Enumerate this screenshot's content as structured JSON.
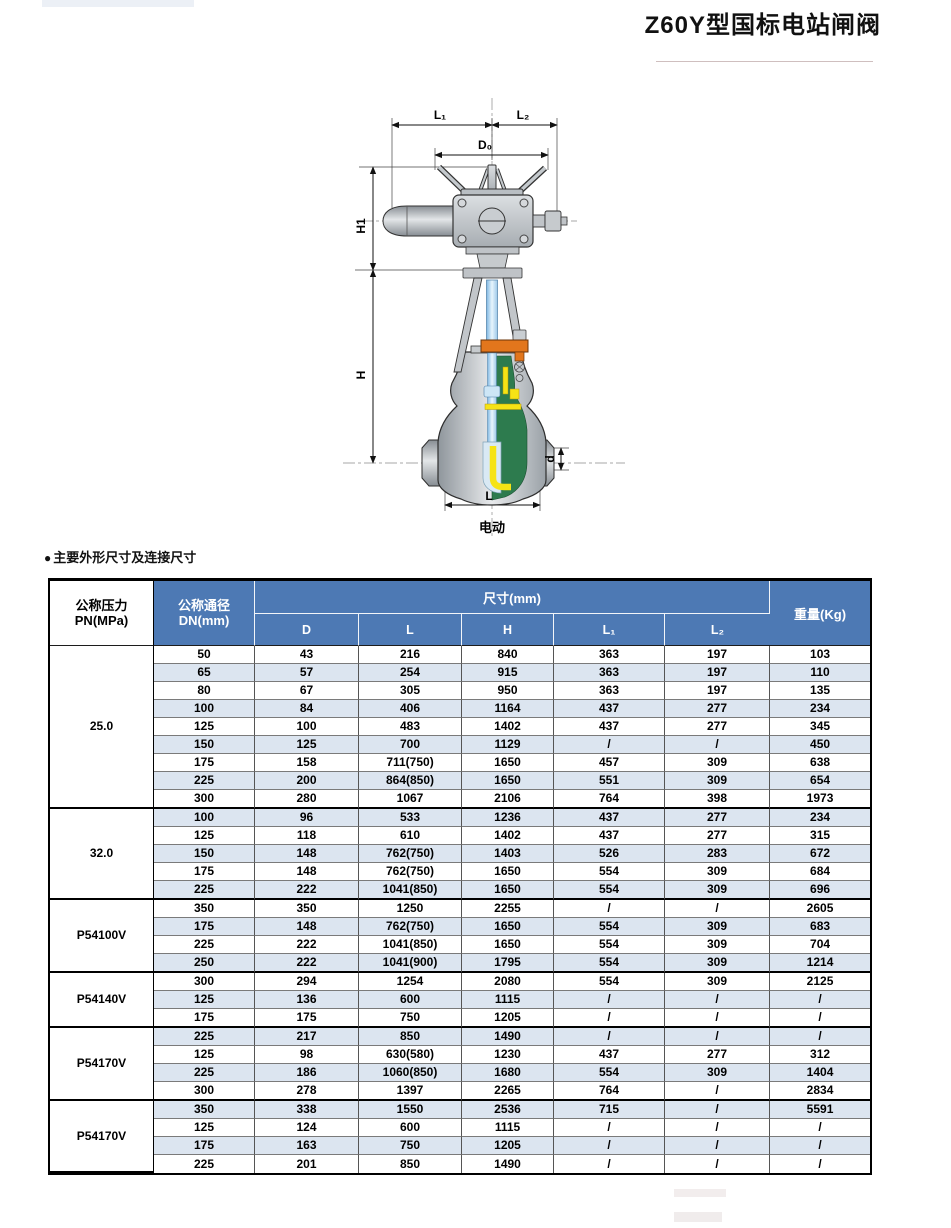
{
  "page": {
    "title": "Z60Y型国标电站闸阀",
    "section": {
      "bullet": "●",
      "label": "主要外形尺寸及连接尺寸"
    }
  },
  "drawing": {
    "caption": "电动",
    "labels": {
      "l1": "L₁",
      "l2": "L₂",
      "d0": "D₀",
      "h1": "H1",
      "h": "H",
      "d": "d",
      "l": "L"
    },
    "colors": {
      "body_gray": "#b9bec3",
      "cavity_green": "#2d7b4e",
      "gate_yellow": "#f6e315",
      "gland_orange": "#e2761c",
      "stem_blue": "#a9d4ee"
    }
  },
  "table": {
    "colors": {
      "header_blue": "#4d79b4",
      "row_alt": "#dce5f0"
    },
    "header": {
      "pressure_line1": "公称压力",
      "pressure_line2": "PN(MPa)",
      "dn_line1": "公称通径",
      "dn_line2": "DN(mm)",
      "size_group": "尺寸(mm)",
      "size_columns": [
        "D",
        "L",
        "H",
        "L₁",
        "L₂"
      ],
      "weight": "重量(Kg)"
    },
    "groups": [
      {
        "pressure": "25.0",
        "rows": [
          [
            "50",
            "43",
            "216",
            "840",
            "363",
            "197",
            "103"
          ],
          [
            "65",
            "57",
            "254",
            "915",
            "363",
            "197",
            "110"
          ],
          [
            "80",
            "67",
            "305",
            "950",
            "363",
            "197",
            "135"
          ],
          [
            "100",
            "84",
            "406",
            "1164",
            "437",
            "277",
            "234"
          ],
          [
            "125",
            "100",
            "483",
            "1402",
            "437",
            "277",
            "345"
          ],
          [
            "150",
            "125",
            "700",
            "1129",
            "/",
            "/",
            "450"
          ],
          [
            "175",
            "158",
            "711(750)",
            "1650",
            "457",
            "309",
            "638"
          ],
          [
            "225",
            "200",
            "864(850)",
            "1650",
            "551",
            "309",
            "654"
          ],
          [
            "300",
            "280",
            "1067",
            "2106",
            "764",
            "398",
            "1973"
          ]
        ]
      },
      {
        "pressure": "32.0",
        "rows": [
          [
            "100",
            "96",
            "533",
            "1236",
            "437",
            "277",
            "234"
          ],
          [
            "125",
            "118",
            "610",
            "1402",
            "437",
            "277",
            "315"
          ],
          [
            "150",
            "148",
            "762(750)",
            "1403",
            "526",
            "283",
            "672"
          ],
          [
            "175",
            "148",
            "762(750)",
            "1650",
            "554",
            "309",
            "684"
          ],
          [
            "225",
            "222",
            "1041(850)",
            "1650",
            "554",
            "309",
            "696"
          ]
        ]
      },
      {
        "pressure": "P54100V",
        "rows": [
          [
            "350",
            "350",
            "1250",
            "2255",
            "/",
            "/",
            "2605"
          ],
          [
            "175",
            "148",
            "762(750)",
            "1650",
            "554",
            "309",
            "683"
          ],
          [
            "225",
            "222",
            "1041(850)",
            "1650",
            "554",
            "309",
            "704"
          ],
          [
            "250",
            "222",
            "1041(900)",
            "1795",
            "554",
            "309",
            "1214"
          ]
        ]
      },
      {
        "pressure": "P54140V",
        "rows": [
          [
            "300",
            "294",
            "1254",
            "2080",
            "554",
            "309",
            "2125"
          ],
          [
            "125",
            "136",
            "600",
            "1115",
            "/",
            "/",
            "/"
          ],
          [
            "175",
            "175",
            "750",
            "1205",
            "/",
            "/",
            "/"
          ]
        ]
      },
      {
        "pressure": "P54170V",
        "rows": [
          [
            "225",
            "217",
            "850",
            "1490",
            "/",
            "/",
            "/"
          ],
          [
            "125",
            "98",
            "630(580)",
            "1230",
            "437",
            "277",
            "312"
          ],
          [
            "225",
            "186",
            "1060(850)",
            "1680",
            "554",
            "309",
            "1404"
          ],
          [
            "300",
            "278",
            "1397",
            "2265",
            "764",
            "/",
            "2834"
          ]
        ]
      },
      {
        "pressure": "P54170V",
        "rows": [
          [
            "350",
            "338",
            "1550",
            "2536",
            "715",
            "/",
            "5591"
          ],
          [
            "125",
            "124",
            "600",
            "1115",
            "/",
            "/",
            "/"
          ],
          [
            "175",
            "163",
            "750",
            "1205",
            "/",
            "/",
            "/"
          ],
          [
            "225",
            "201",
            "850",
            "1490",
            "/",
            "/",
            "/"
          ]
        ]
      }
    ]
  }
}
